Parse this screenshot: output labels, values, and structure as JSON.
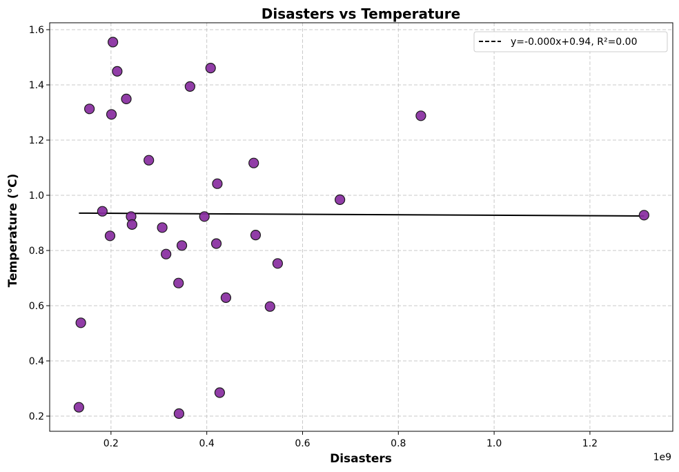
{
  "chart_data": {
    "type": "scatter",
    "title": "Disasters vs Temperature",
    "xlabel": "Disasters",
    "ylabel": "Temperature (°C)",
    "x_offset_label": "1e9",
    "xlim": [
      0.072,
      1.373
    ],
    "ylim": [
      0.145,
      1.625
    ],
    "x_ticks": [
      0.2,
      0.4,
      0.6,
      0.8,
      1.0,
      1.2
    ],
    "x_tick_labels": [
      "0.2",
      "0.4",
      "0.6",
      "0.8",
      "1.0",
      "1.2"
    ],
    "y_ticks": [
      0.2,
      0.4,
      0.6,
      0.8,
      1.0,
      1.2,
      1.4,
      1.6
    ],
    "y_tick_labels": [
      "0.2",
      "0.4",
      "0.6",
      "0.8",
      "1.0",
      "1.2",
      "1.4",
      "1.6"
    ],
    "grid": true,
    "legend_position": "top-right",
    "points": [
      {
        "x": 0.133,
        "y": 0.232
      },
      {
        "x": 0.137,
        "y": 0.538
      },
      {
        "x": 0.155,
        "y": 1.313
      },
      {
        "x": 0.182,
        "y": 0.942
      },
      {
        "x": 0.198,
        "y": 0.853
      },
      {
        "x": 0.201,
        "y": 1.293
      },
      {
        "x": 0.204,
        "y": 1.555
      },
      {
        "x": 0.213,
        "y": 1.449
      },
      {
        "x": 0.232,
        "y": 1.349
      },
      {
        "x": 0.242,
        "y": 0.923
      },
      {
        "x": 0.244,
        "y": 0.894
      },
      {
        "x": 0.279,
        "y": 1.127
      },
      {
        "x": 0.307,
        "y": 0.883
      },
      {
        "x": 0.315,
        "y": 0.787
      },
      {
        "x": 0.341,
        "y": 0.682
      },
      {
        "x": 0.342,
        "y": 0.209
      },
      {
        "x": 0.348,
        "y": 0.818
      },
      {
        "x": 0.365,
        "y": 1.394
      },
      {
        "x": 0.395,
        "y": 0.923
      },
      {
        "x": 0.408,
        "y": 1.461
      },
      {
        "x": 0.42,
        "y": 0.825
      },
      {
        "x": 0.422,
        "y": 1.042
      },
      {
        "x": 0.427,
        "y": 0.285
      },
      {
        "x": 0.44,
        "y": 0.629
      },
      {
        "x": 0.498,
        "y": 1.117
      },
      {
        "x": 0.502,
        "y": 0.856
      },
      {
        "x": 0.532,
        "y": 0.597
      },
      {
        "x": 0.548,
        "y": 0.753
      },
      {
        "x": 0.678,
        "y": 0.984
      },
      {
        "x": 0.847,
        "y": 1.288
      },
      {
        "x": 1.313,
        "y": 0.928
      }
    ],
    "point_color": "#882d9f",
    "point_edge_color": "#1a1a1a",
    "fit_line": {
      "label": "y=-0.000x+0.94, R²=0.00",
      "slope": -0.0088,
      "intercept": 0.9365,
      "color": "#000000"
    }
  }
}
